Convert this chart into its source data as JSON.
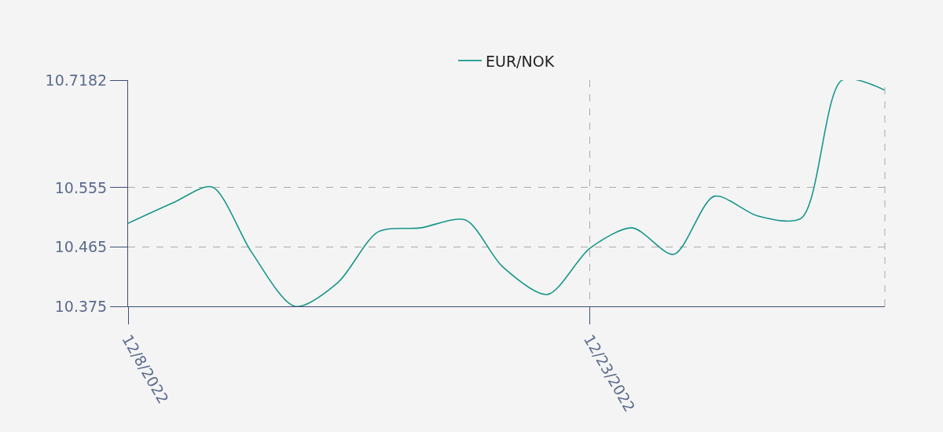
{
  "chart_data": {
    "type": "line",
    "x": [
      "2022-12-08T00:00",
      "2022-12-09T11:00",
      "2022-12-10T17:30",
      "2022-12-12T00:00",
      "2022-12-13T10:00",
      "2022-12-14T19:30",
      "2022-12-16T03:00",
      "2022-12-17T12:00",
      "2022-12-18T23:00",
      "2022-12-20T04:00",
      "2022-12-21T15:00",
      "2022-12-23T00:00",
      "2022-12-24T09:00",
      "2022-12-25T17:30",
      "2022-12-27T01:00",
      "2022-12-28T11:00",
      "2022-12-29T21:00",
      "2022-12-31T04:30",
      "2023-01-01T14:00"
    ],
    "series": [
      {
        "name": "EUR/NOK",
        "color": "#17968a",
        "values": [
          10.501,
          10.532,
          10.556,
          10.458,
          10.375,
          10.411,
          10.488,
          10.494,
          10.506,
          10.435,
          10.393,
          10.463,
          10.494,
          10.454,
          10.542,
          10.512,
          10.509,
          10.718,
          10.703
        ]
      }
    ],
    "xlim": [
      "2022-12-08T00:00",
      "2023-01-01T14:00"
    ],
    "xticks": [
      {
        "value": "2022-12-08T00:00",
        "label": "12/8/2022"
      },
      {
        "value": "2022-12-23T00:00",
        "label": "12/23/2022"
      }
    ],
    "ylim": [
      10.375,
      10.7182
    ],
    "yticks": [
      10.375,
      10.465,
      10.555,
      10.7182
    ],
    "grid": true,
    "legend": "top",
    "marker": "none",
    "line_style": "solid"
  }
}
